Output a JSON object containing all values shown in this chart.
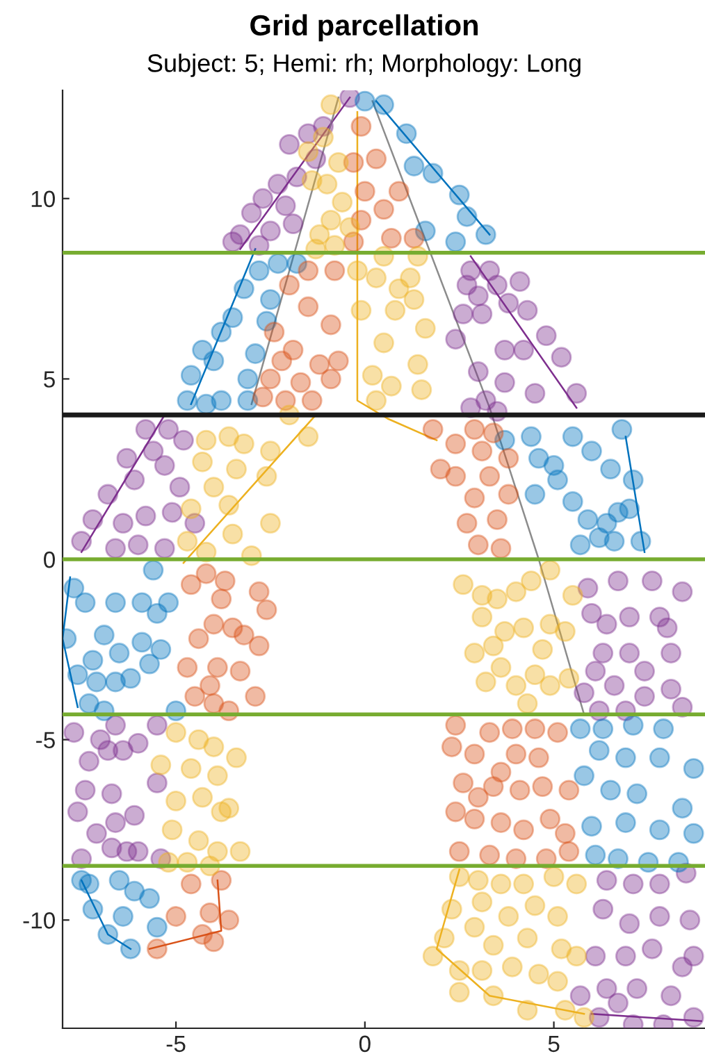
{
  "chart_data": {
    "type": "scatter",
    "title": "Grid parcellation",
    "subtitle": "Subject: 5; Hemi: rh; Morphology: Long",
    "xlim": [
      -8,
      9
    ],
    "ylim": [
      -13,
      13
    ],
    "xticks": [
      -5,
      0,
      5
    ],
    "yticks": [
      -10,
      -5,
      0,
      5,
      10
    ],
    "series": [
      {
        "marker": "circle",
        "color": "#7e2f8e",
        "x": [
          -0.4,
          -1.1,
          -1.5,
          -2.0,
          -1.3,
          -1.8,
          -2.3,
          -2.7,
          -3.0,
          -2.1,
          -3.3,
          -2.5,
          -1.9,
          -3.5,
          -2.8,
          2.8,
          3.3,
          2.7,
          3.0,
          3.5,
          3.1,
          3.8,
          2.6,
          4.1,
          4.3,
          4.8,
          5.2,
          5.6,
          4.5,
          3.7,
          3.0,
          2.4,
          3.2,
          2.8,
          3.7,
          4.2,
          3.5,
          -7.5,
          -7.2,
          -6.8,
          -6.3,
          -5.8,
          -5.2,
          -5.6,
          -6.1,
          -5.3,
          -4.9,
          -6.6,
          -6.0,
          -5.3,
          -5.8,
          -5.1,
          -4.5,
          -4.8,
          -6.4,
          5.9,
          6.7,
          7.6,
          6.0,
          6.4,
          7.0,
          7.8,
          6.3,
          7.0,
          7.4,
          8.1,
          8.0,
          5.8,
          6.6,
          7.4,
          8.1,
          6.2,
          6.9,
          8.4,
          6.1,
          8.4,
          -7.7,
          -7.0,
          -6.8,
          -6.4,
          -6.6,
          -6.0,
          -5.5,
          -7.3,
          -7.4,
          -6.7,
          -7.6,
          -7.1,
          -6.6,
          -6.1,
          -6.7,
          -6.3,
          -6.0,
          -7.5,
          -5.4,
          -5.5,
          6.4,
          7.1,
          7.8,
          8.5,
          6.3,
          7.0,
          7.8,
          8.6,
          6.1,
          6.9,
          7.6,
          8.4,
          6.4,
          7.2,
          8.1,
          6.2,
          7.1,
          7.9,
          8.7,
          5.7,
          6.7,
          8.7
        ],
        "values": [
          12.8,
          12.0,
          11.8,
          11.5,
          11.1,
          10.6,
          10.4,
          10.0,
          9.6,
          9.8,
          9.0,
          9.1,
          9.3,
          8.8,
          8.7,
          8.0,
          8.0,
          7.6,
          7.3,
          7.6,
          6.8,
          7.1,
          6.8,
          7.7,
          6.9,
          6.2,
          5.6,
          4.6,
          4.6,
          4.9,
          5.2,
          6.1,
          4.4,
          4.2,
          5.8,
          5.8,
          4.1,
          0.5,
          1.1,
          1.8,
          2.8,
          3.6,
          3.6,
          3.0,
          2.2,
          2.6,
          2.0,
          0.3,
          0.4,
          0.3,
          1.2,
          1.3,
          1.0,
          3.3,
          1.0,
          -0.8,
          -0.6,
          -0.6,
          -1.5,
          -1.8,
          -1.6,
          -1.6,
          -2.6,
          -2.6,
          -3.1,
          -2.6,
          -1.9,
          -3.7,
          -3.5,
          -3.8,
          -3.6,
          -4.2,
          -4.2,
          -4.1,
          -3.1,
          -0.9,
          -4.8,
          -5.0,
          -5.3,
          -5.3,
          -4.6,
          -5.1,
          -4.6,
          -5.6,
          -6.4,
          -6.5,
          -7.0,
          -7.6,
          -7.3,
          -7.1,
          -8.0,
          -8.1,
          -8.1,
          -8.3,
          -8.3,
          -6.2,
          -8.9,
          -9.0,
          -9.0,
          -8.7,
          -9.7,
          -10.1,
          -9.9,
          -10.0,
          -11.0,
          -11.0,
          -10.8,
          -11.3,
          -11.9,
          -11.9,
          -12.1,
          -12.7,
          -12.9,
          -12.9,
          -12.7,
          -12.1,
          -12.3,
          -11.0
        ]
      },
      {
        "marker": "circle",
        "color": "#0072bd",
        "x": [
          0.0,
          0.5,
          1.1,
          1.3,
          1.8,
          2.5,
          2.7,
          1.6,
          3.2,
          2.4,
          -4.7,
          -4.2,
          -3.8,
          -3.1,
          -4.6,
          -4.0,
          -3.1,
          -2.9,
          -3.8,
          -4.3,
          -3.5,
          -2.6,
          -3.2,
          -2.5,
          -2.8,
          -2.3,
          -1.8,
          3.7,
          4.4,
          5.5,
          4.6,
          5.0,
          6.0,
          6.5,
          6.8,
          7.1,
          5.5,
          5.9,
          6.4,
          6.7,
          7.0,
          5.7,
          6.2,
          7.3,
          6.6,
          4.5,
          5.1,
          -7.7,
          -7.9,
          -7.4,
          -6.9,
          -7.2,
          -7.1,
          -7.6,
          -6.6,
          -6.9,
          -6.2,
          -5.7,
          -6.5,
          -5.9,
          -5.5,
          -5.9,
          -6.6,
          -5.2,
          -5.4,
          -5.0,
          -5.6,
          -7.3,
          5.7,
          6.3,
          7.1,
          7.9,
          6.2,
          6.9,
          7.8,
          8.7,
          6.5,
          7.2,
          8.4,
          6.9,
          7.8,
          8.7,
          6.1,
          6.7,
          7.5,
          8.3,
          5.8,
          6.0,
          -7.5,
          -6.5,
          -6.1,
          -7.2,
          -6.4,
          -5.7,
          -6.8,
          -6.2,
          -5.5,
          -7.3
        ],
        "values": [
          12.7,
          12.6,
          11.8,
          10.9,
          10.7,
          10.1,
          9.5,
          9.1,
          9.0,
          8.8,
          4.4,
          4.3,
          4.4,
          4.4,
          5.1,
          5.5,
          5.0,
          5.7,
          6.3,
          5.8,
          6.7,
          6.6,
          7.5,
          7.2,
          8.0,
          8.2,
          8.2,
          3.3,
          3.4,
          3.4,
          2.8,
          2.6,
          3.0,
          2.5,
          3.6,
          2.2,
          1.6,
          1.1,
          1.0,
          1.3,
          1.4,
          0.4,
          0.6,
          0.5,
          0.5,
          1.8,
          2.2,
          -0.8,
          -2.2,
          -1.2,
          -2.1,
          -2.8,
          -3.4,
          -3.2,
          -3.4,
          -4.2,
          -3.3,
          -2.9,
          -2.6,
          -2.3,
          -1.5,
          -1.2,
          -1.2,
          -1.2,
          -2.5,
          -4.2,
          -0.3,
          -4.0,
          -4.7,
          -4.7,
          -4.6,
          -4.7,
          -5.3,
          -5.5,
          -5.5,
          -5.8,
          -6.4,
          -6.5,
          -6.9,
          -7.3,
          -7.5,
          -7.6,
          -8.2,
          -8.3,
          -8.4,
          -8.4,
          -6.0,
          -7.4,
          -8.9,
          -8.9,
          -9.2,
          -9.7,
          -9.9,
          -9.4,
          -10.4,
          -10.8,
          -10.2,
          -9.0
        ]
      },
      {
        "marker": "circle",
        "color": "#d95319",
        "x": [
          -0.1,
          -0.3,
          0.3,
          0.0,
          -0.1,
          0.5,
          0.9,
          0.7,
          1.3,
          -0.3,
          -2.5,
          -2.2,
          -2.7,
          -1.7,
          -1.9,
          -1.2,
          -0.9,
          -0.7,
          -1.5,
          -0.9,
          -2.0,
          -1.5,
          -0.8,
          -2.1,
          -1.4,
          -2.4,
          1.8,
          2.4,
          2.9,
          3.1,
          2.4,
          3.3,
          2.9,
          3.5,
          2.7,
          3.0,
          3.6,
          3.8,
          2.0,
          3.4,
          3.8,
          -3.7,
          -4.6,
          -4.2,
          -3.8,
          -4.0,
          -2.8,
          -2.6,
          -3.2,
          -3.5,
          -4.4,
          -4.7,
          -3.9,
          -3.3,
          -2.8,
          -2.9,
          -4.5,
          -4.0,
          -3.6,
          -4.1,
          2.4,
          2.3,
          2.9,
          3.3,
          3.9,
          4.5,
          5.1,
          4.0,
          4.6,
          3.6,
          2.6,
          3.4,
          4.1,
          4.7,
          5.4,
          3.0,
          2.9,
          3.6,
          4.2,
          4.9,
          5.3,
          2.5,
          3.3,
          4.0,
          4.8,
          5.4,
          2.4,
          -5.0,
          -4.1,
          -3.8,
          -4.6,
          -4.3,
          -3.6,
          -5.5,
          -4.0
        ],
        "values": [
          12.0,
          11.0,
          11.1,
          10.2,
          9.4,
          9.7,
          10.2,
          8.9,
          8.9,
          8.8,
          5.0,
          5.5,
          4.5,
          4.9,
          5.8,
          5.4,
          5.0,
          5.5,
          7.0,
          6.5,
          7.6,
          8.0,
          8.0,
          4.4,
          4.4,
          6.3,
          3.6,
          3.2,
          3.6,
          3.0,
          2.3,
          2.3,
          1.7,
          1.1,
          1.0,
          0.4,
          0.3,
          1.8,
          2.5,
          3.5,
          2.8,
          -0.6,
          -0.7,
          -0.4,
          -1.1,
          -1.8,
          -0.9,
          -1.4,
          -2.1,
          -1.9,
          -2.2,
          -3.0,
          -3.0,
          -3.1,
          -2.4,
          -3.8,
          -3.8,
          -4.0,
          -4.2,
          -3.5,
          -4.6,
          -5.2,
          -5.4,
          -4.8,
          -4.7,
          -4.7,
          -4.8,
          -5.4,
          -5.5,
          -5.9,
          -6.2,
          -6.3,
          -6.4,
          -6.3,
          -6.4,
          -6.6,
          -7.2,
          -7.3,
          -7.5,
          -7.2,
          -7.6,
          -8.1,
          -8.2,
          -8.3,
          -8.3,
          -8.1,
          -7.0,
          -9.9,
          -9.8,
          -8.9,
          -9.0,
          -10.4,
          -10.0,
          -10.8,
          -10.6
        ]
      },
      {
        "marker": "circle",
        "color": "#edb120",
        "x": [
          -0.9,
          -1.1,
          -0.7,
          -1.5,
          -1.4,
          -1.0,
          -0.6,
          -0.9,
          -1.2,
          -0.4,
          -0.8,
          -1.3,
          -0.2,
          0.3,
          0.9,
          1.2,
          1.4,
          0.5,
          0.8,
          1.3,
          1.6,
          0.5,
          0.2,
          0.7,
          1.5,
          0.3,
          -0.1,
          1.4,
          -4.2,
          -3.6,
          -3.2,
          -2.5,
          -4.3,
          -3.4,
          -4.0,
          -2.6,
          -3.6,
          -4.6,
          -2.5,
          -4.7,
          -4.2,
          -3.0,
          -3.5,
          -2.0,
          -1.5,
          2.6,
          3.1,
          3.5,
          4.0,
          4.4,
          3.1,
          3.7,
          4.2,
          4.9,
          3.4,
          4.7,
          2.9,
          3.6,
          4.5,
          3.2,
          4.0,
          4.9,
          5.4,
          5.3,
          5.5,
          4.9,
          4.3,
          -5.0,
          -4.4,
          -4.0,
          -5.4,
          -4.6,
          -3.9,
          -5.0,
          -4.3,
          -3.6,
          -5.1,
          -4.4,
          -3.9,
          -3.8,
          -3.4,
          -3.3,
          -4.7,
          -5.2,
          -4.1,
          2.5,
          3.0,
          3.6,
          4.2,
          5.0,
          5.6,
          2.3,
          3.1,
          3.8,
          4.5,
          5.1,
          2.1,
          2.9,
          3.4,
          4.3,
          5.2,
          1.8,
          2.5,
          3.1,
          3.9,
          4.6,
          5.1,
          2.5,
          3.4,
          4.3,
          5.3,
          5.8,
          5.6
        ],
        "values": [
          12.6,
          11.7,
          11.0,
          11.3,
          10.5,
          10.4,
          9.9,
          9.4,
          9.0,
          9.2,
          8.7,
          8.6,
          8.0,
          7.8,
          7.5,
          7.8,
          8.4,
          8.4,
          6.9,
          7.2,
          6.4,
          6.0,
          5.1,
          4.8,
          4.7,
          4.4,
          6.9,
          5.4,
          3.3,
          3.4,
          3.2,
          3.0,
          2.7,
          2.5,
          2.0,
          2.3,
          1.5,
          1.4,
          1.0,
          0.5,
          0.2,
          0.1,
          0.7,
          4.0,
          3.4,
          -0.7,
          -1.0,
          -1.1,
          -0.9,
          -0.6,
          -1.6,
          -2.0,
          -1.9,
          -1.8,
          -2.4,
          -2.5,
          -2.6,
          -3.0,
          -3.2,
          -3.4,
          -3.5,
          -3.5,
          -3.3,
          -2.0,
          -1.0,
          -0.3,
          -4.0,
          -4.8,
          -5.0,
          -5.2,
          -5.7,
          -5.8,
          -6.0,
          -6.7,
          -6.6,
          -6.9,
          -7.5,
          -7.8,
          -8.1,
          -7.0,
          -5.5,
          -8.1,
          -8.4,
          -8.4,
          -8.5,
          -8.8,
          -8.9,
          -9.0,
          -9.0,
          -8.8,
          -9.0,
          -9.7,
          -9.5,
          -9.9,
          -9.6,
          -9.9,
          -10.5,
          -10.2,
          -10.7,
          -10.5,
          -10.8,
          -11.0,
          -11.4,
          -11.4,
          -11.3,
          -11.5,
          -11.7,
          -12.0,
          -12.1,
          -12.5,
          -12.5,
          -12.7,
          -11.0
        ]
      },
      {
        "type": "line",
        "color": "#0072bd",
        "x": [
          -4.6,
          -2.9
        ],
        "values": [
          4.3,
          8.6
        ]
      },
      {
        "type": "line",
        "color": "#7e2f8e",
        "x": [
          -3.3,
          -0.4
        ],
        "values": [
          8.6,
          12.8
        ]
      },
      {
        "type": "line",
        "color": "#8c8c8c",
        "x": [
          -0.7,
          -3.0
        ],
        "values": [
          12.8,
          4.3
        ]
      },
      {
        "type": "line",
        "color": "#edb120",
        "x": [
          -0.2,
          -0.2,
          0.6,
          1.9
        ],
        "values": [
          12.4,
          4.4,
          3.9,
          3.3
        ]
      },
      {
        "type": "line",
        "color": "#0072bd",
        "x": [
          0.3,
          3.3
        ],
        "values": [
          12.7,
          9.0
        ]
      },
      {
        "type": "line",
        "color": "#8c8c8c",
        "x": [
          0.2,
          3.3,
          4.6,
          5.8
        ],
        "values": [
          12.7,
          4.2,
          0.0,
          -4.3
        ]
      },
      {
        "type": "line",
        "color": "#7e2f8e",
        "x": [
          2.8,
          5.6
        ],
        "values": [
          8.4,
          4.2
        ]
      },
      {
        "type": "line",
        "color": "#7e2f8e",
        "x": [
          -7.5,
          -5.3
        ],
        "values": [
          0.2,
          4.0
        ]
      },
      {
        "type": "line",
        "color": "#edb120",
        "x": [
          -1.3,
          -4.8
        ],
        "values": [
          4.0,
          -0.1
        ]
      },
      {
        "type": "line",
        "color": "#0072bd",
        "x": [
          -7.8,
          -8.0,
          -7.6
        ],
        "values": [
          -0.5,
          -2.2,
          -4.1
        ]
      },
      {
        "type": "line",
        "color": "#0072bd",
        "x": [
          6.9,
          7.4
        ],
        "values": [
          3.4,
          0.2
        ]
      },
      {
        "type": "line",
        "color": "#d95319",
        "x": [
          -5.7,
          -3.8,
          -3.9
        ],
        "values": [
          -10.8,
          -10.3,
          -8.9
        ]
      },
      {
        "type": "line",
        "color": "#0072bd",
        "x": [
          -7.5,
          -6.8,
          -6.2
        ],
        "values": [
          -8.9,
          -10.4,
          -10.8
        ]
      },
      {
        "type": "line",
        "color": "#edb120",
        "x": [
          2.5,
          1.9,
          3.3,
          5.8
        ],
        "values": [
          -8.6,
          -10.8,
          -12.1,
          -12.6
        ]
      },
      {
        "type": "line",
        "color": "#7e2f8e",
        "x": [
          6.0,
          8.9
        ],
        "values": [
          -12.6,
          -12.8
        ]
      }
    ],
    "ref_lines": [
      {
        "axis": "y",
        "value": 8.5,
        "color": "#77ac30"
      },
      {
        "axis": "y",
        "value": 4,
        "color": "#1a1a1a"
      },
      {
        "axis": "y",
        "value": 0,
        "color": "#77ac30"
      },
      {
        "axis": "y",
        "value": -4.3,
        "color": "#77ac30"
      },
      {
        "axis": "y",
        "value": -8.5,
        "color": "#77ac30"
      }
    ]
  }
}
